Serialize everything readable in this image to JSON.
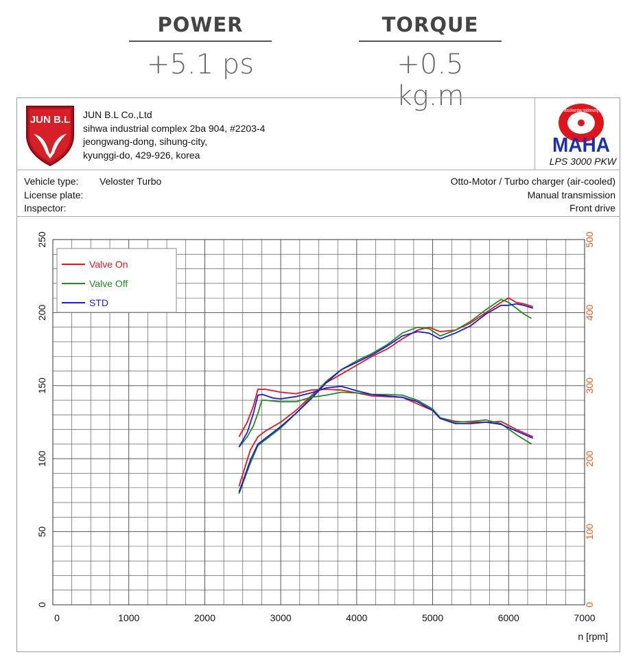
{
  "stats": {
    "power": {
      "label": "POWER",
      "value": "+5.1 ps"
    },
    "torque": {
      "label": "TORQUE",
      "value": "+0.5 kg.m"
    }
  },
  "company": {
    "logo_text": "JUN B.L",
    "name": "JUN B.L Co.,Ltd",
    "address_lines": [
      "sihwa industrial complex 2ba 904, #2203-4",
      "jeongwang-dong, sihung-city,",
      "kyunggi-do, 429-926, korea"
    ]
  },
  "maha": {
    "brand": "MAHA",
    "ring_text": "Maschinenbau Haldenwang",
    "model": "LPS 3000 PKW"
  },
  "vehicle": {
    "type_label": "Vehicle type:",
    "type_value": "Veloster Turbo",
    "plate_label": "License plate:",
    "inspector_label": "Inspector:",
    "engine": "Otto-Motor / Turbo charger (air-cooled)",
    "transmission": "Manual transmission",
    "drive": "Front drive"
  },
  "colors": {
    "valve_on": "#e8131b",
    "valve_off": "#1f8a1f",
    "std": "#1a1ae0",
    "right_axis": "#f05a1e",
    "grid": "#444444"
  },
  "chart_data": {
    "type": "line",
    "xlabel": "n [rpm]",
    "xlim": [
      0,
      7000
    ],
    "xticks": [
      0,
      1000,
      2000,
      3000,
      4000,
      5000,
      6000,
      7000
    ],
    "ylim_left": [
      0,
      250
    ],
    "yticks_left": [
      0,
      50,
      100,
      150,
      200,
      250
    ],
    "ylim_right": [
      0,
      500
    ],
    "yticks_right": [
      0,
      100,
      200,
      300,
      400,
      500
    ],
    "grid": true,
    "legend_placement": "top-left",
    "series": [
      {
        "name": "Valve On",
        "curve": "power",
        "color": "#e8131b",
        "x": [
          2450,
          2600,
          2700,
          2800,
          3000,
          3200,
          3400,
          3600,
          3800,
          4000,
          4200,
          4400,
          4600,
          4800,
          4950,
          5100,
          5300,
          5500,
          5700,
          5900,
          6000,
          6100,
          6200,
          6320
        ],
        "y": [
          81,
          106,
          115,
          119,
          125,
          133,
          143,
          152,
          158,
          164,
          170,
          175,
          182,
          188,
          190,
          187,
          188,
          193,
          200,
          207,
          210,
          207,
          206,
          204
        ]
      },
      {
        "name": "Valve Off",
        "curve": "power",
        "color": "#1f8a1f",
        "x": [
          2450,
          2600,
          2700,
          2800,
          3000,
          3200,
          3400,
          3600,
          3800,
          4000,
          4200,
          4400,
          4600,
          4800,
          4950,
          5100,
          5300,
          5500,
          5700,
          5900,
          6000,
          6100,
          6200,
          6300
        ],
        "y": [
          76,
          97,
          109,
          113,
          121,
          131,
          142,
          153,
          161,
          167,
          172,
          178,
          186,
          190,
          189,
          184,
          188,
          194,
          202,
          209,
          207,
          203,
          199,
          196
        ]
      },
      {
        "name": "STD",
        "curve": "power",
        "color": "#1a1ae0",
        "x": [
          2450,
          2600,
          2700,
          2800,
          3000,
          3200,
          3400,
          3600,
          3800,
          4000,
          4200,
          4400,
          4600,
          4800,
          4950,
          5100,
          5300,
          5500,
          5700,
          5900,
          6000,
          6100,
          6200,
          6320
        ],
        "y": [
          77,
          99,
          110,
          114,
          122,
          131,
          141,
          152,
          161,
          166,
          171,
          177,
          184,
          187,
          186,
          182,
          186,
          191,
          199,
          205,
          205,
          206,
          205,
          203
        ]
      },
      {
        "name": "Valve On",
        "curve": "torque",
        "color": "#e8131b",
        "x": [
          2450,
          2560,
          2640,
          2700,
          2800,
          3000,
          3200,
          3400,
          3600,
          3800,
          4000,
          4200,
          4400,
          4600,
          4800,
          5000,
          5100,
          5300,
          5500,
          5700,
          5900,
          6100,
          6320
        ],
        "y": [
          230,
          250,
          272,
          295,
          295,
          291,
          289,
          294,
          295,
          294,
          290,
          286,
          285,
          284,
          275,
          266,
          256,
          251,
          250,
          250,
          251,
          240,
          230
        ]
      },
      {
        "name": "Valve Off",
        "curve": "torque",
        "color": "#1f8a1f",
        "x": [
          2450,
          2560,
          2640,
          2700,
          2750,
          2800,
          3000,
          3200,
          3400,
          3600,
          3800,
          4000,
          4200,
          4400,
          4600,
          4800,
          5000,
          5100,
          5300,
          5500,
          5700,
          5900,
          6100,
          6300
        ],
        "y": [
          216,
          230,
          245,
          262,
          280,
          280,
          278,
          278,
          284,
          287,
          291,
          290,
          288,
          288,
          287,
          280,
          268,
          256,
          250,
          251,
          253,
          248,
          233,
          220
        ]
      },
      {
        "name": "STD",
        "curve": "torque",
        "color": "#1a1ae0",
        "x": [
          2450,
          2560,
          2640,
          2700,
          2760,
          2900,
          3000,
          3200,
          3400,
          3600,
          3800,
          4000,
          4200,
          4400,
          4600,
          4800,
          5000,
          5100,
          5300,
          5500,
          5700,
          5900,
          6100,
          6320
        ],
        "y": [
          216,
          236,
          262,
          287,
          288,
          283,
          282,
          285,
          290,
          297,
          299,
          293,
          288,
          286,
          284,
          278,
          266,
          255,
          248,
          248,
          250,
          247,
          238,
          228
        ]
      }
    ]
  }
}
